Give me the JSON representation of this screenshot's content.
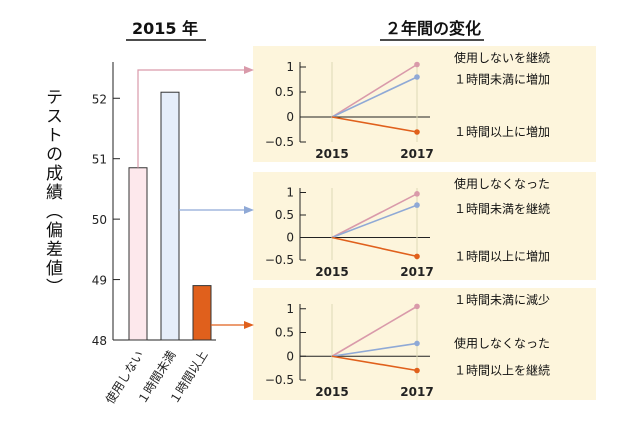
{
  "chart_data": [
    {
      "type": "bar",
      "title": "2015 年",
      "ylabel": "テストの成績（偏差値）",
      "categories": [
        "使用しない",
        "１時間未満",
        "１時間以上"
      ],
      "values": [
        50.85,
        52.1,
        48.9
      ],
      "ylim": [
        48,
        52.6
      ],
      "yticks": [
        "48",
        "49",
        "50",
        "51",
        "52"
      ],
      "colors": [
        "#fde8ec",
        "#e6eefa",
        "#e0601c"
      ],
      "edge_color": "#333333"
    },
    {
      "type": "line",
      "title": "２年間の変化",
      "x": [
        "2015",
        "2017"
      ],
      "ylim": [
        -0.5,
        1.1
      ],
      "yticks": [
        "1",
        "0.5",
        "0",
        "−0.5"
      ],
      "series": [
        {
          "name": "使用しないを継続",
          "values": [
            0,
            1.05
          ],
          "color": "#d99aaa"
        },
        {
          "name": "１時間未満に増加",
          "values": [
            0,
            0.8
          ],
          "color": "#8fa9d6"
        },
        {
          "name": "１時間以上に増加",
          "values": [
            0,
            -0.3
          ],
          "color": "#e0601c"
        }
      ]
    },
    {
      "type": "line",
      "x": [
        "2015",
        "2017"
      ],
      "ylim": [
        -0.5,
        1.1
      ],
      "yticks": [
        "1",
        "0.5",
        "0",
        "−0.5"
      ],
      "series": [
        {
          "name": "使用しなくなった",
          "values": [
            0,
            0.97
          ],
          "color": "#d99aaa"
        },
        {
          "name": "１時間未満を継続",
          "values": [
            0,
            0.72
          ],
          "color": "#8fa9d6"
        },
        {
          "name": "１時間以上に増加",
          "values": [
            0,
            -0.42
          ],
          "color": "#e0601c"
        }
      ]
    },
    {
      "type": "line",
      "x": [
        "2015",
        "2017"
      ],
      "ylim": [
        -0.5,
        1.1
      ],
      "yticks": [
        "1",
        "0.5",
        "0",
        "−0.5"
      ],
      "series": [
        {
          "name": "１時間未満に減少",
          "values": [
            0,
            1.05
          ],
          "color": "#d99aaa"
        },
        {
          "name": "使用しなくなった",
          "values": [
            0,
            0.27
          ],
          "color": "#8fa9d6"
        },
        {
          "name": "１時間以上を継続",
          "values": [
            0,
            -0.3
          ],
          "color": "#e0601c"
        }
      ]
    }
  ]
}
